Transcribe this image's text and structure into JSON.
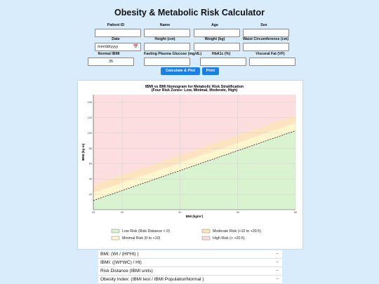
{
  "title": "Obesity & Metabolic Risk Calculator",
  "form": {
    "patient_id": {
      "label": "Patient ID",
      "value": ""
    },
    "name": {
      "label": "Name",
      "value": ""
    },
    "age": {
      "label": "Age",
      "value": ""
    },
    "sex": {
      "label": "Sex",
      "value": ""
    },
    "date": {
      "label": "Date",
      "value": "mm/dd/yyyy"
    },
    "height": {
      "label": "Height (cm)",
      "value": ""
    },
    "weight": {
      "label": "Weight (kg)",
      "value": ""
    },
    "waist": {
      "label": "Waist Circumference (cm)",
      "value": ""
    },
    "normal_ibmi": {
      "label": "Normal IBMI",
      "value": "35"
    },
    "glucose": {
      "label": "Fasting Plasma Glucose (mg/dL)",
      "value": ""
    },
    "hba1c": {
      "label": "HbA1c (%)",
      "value": ""
    },
    "visceral_fat": {
      "label": "Visceral Fat (VF)",
      "value": ""
    }
  },
  "buttons": {
    "calculate": "Calculate & Plot",
    "print": "Print"
  },
  "colors": {
    "low": "#d9f2d0",
    "minimal": "#fdf6cf",
    "moderate": "#fde4c0",
    "high": "#fddede",
    "button": "#1c7fe3",
    "background": "#d9ecfb"
  },
  "chart_data": {
    "type": "area",
    "title": "IBMI vs BMI Nomogram for Metabolic Risk Stratification",
    "subtitle": "(Four Risk Zones: Low, Minimal, Moderate, High)",
    "xlabel": "BMI (kg/m²)",
    "ylabel": "IBMI (kg·m)",
    "xlim": [
      15,
      50
    ],
    "ylim": [
      0,
      150
    ],
    "x_ticks": [
      15,
      20,
      30,
      40,
      50
    ],
    "x_tick_labels": [
      "15",
      "20",
      "30",
      "40",
      "50"
    ],
    "y_ticks": [
      20,
      40,
      60,
      80,
      100,
      120,
      140
    ],
    "y_tick_labels": [
      "20",
      "40",
      "60",
      "80",
      "100",
      "120",
      "140"
    ],
    "grid": true,
    "legend_placement": "bottom",
    "reference_line": {
      "x": [
        15,
        50
      ],
      "y": [
        12,
        103
      ],
      "style": "dashed"
    },
    "zones": [
      {
        "name": "Low Risk (Risk Distance < 0)",
        "color": "#d9f2d0",
        "offset_from": null,
        "offset_to": 0
      },
      {
        "name": "Minimal Risk (0 to +10)",
        "color": "#fdf6cf",
        "offset_from": 0,
        "offset_to": 10
      },
      {
        "name": "Moderate Risk (+10 to +20.5)",
        "color": "#fde4c0",
        "offset_from": 10,
        "offset_to": 20.5
      },
      {
        "name": "High Risk (> +20.5)",
        "color": "#fddede",
        "offset_from": 20.5,
        "offset_to": null
      }
    ]
  },
  "results": [
    {
      "label": "BMI: (Wt / (Ht*Ht) )",
      "value": "--"
    },
    {
      "label": "IBMI: ((Wt*WC) / Ht)",
      "value": "--"
    },
    {
      "label": "Risk Distance (IBMI units)",
      "value": "--"
    },
    {
      "label": "Obesity Index: (IBMI test / IBMI PopulationNormal )",
      "value": "--"
    }
  ]
}
